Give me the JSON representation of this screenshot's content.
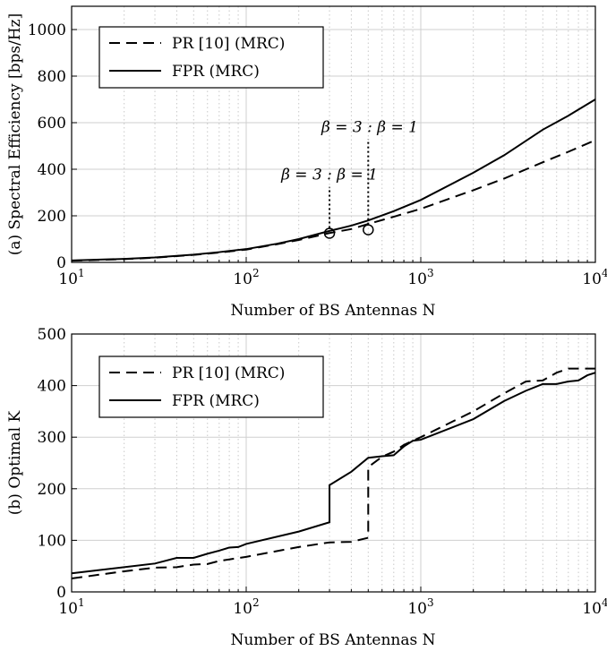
{
  "chart_data": [
    {
      "type": "line",
      "panel": "a",
      "title": "",
      "xlabel": "Number of BS Antennas N",
      "ylabel": "(a) Spectral Efficiency [bps/Hz]",
      "xscale": "log",
      "xlim": [
        10,
        10000
      ],
      "ylim": [
        0,
        1100
      ],
      "yticks": [
        0,
        200,
        400,
        600,
        800,
        1000
      ],
      "xticks": [
        10,
        100,
        1000,
        10000
      ],
      "xtick_labels": [
        {
          "base": "10",
          "exp": "1"
        },
        {
          "base": "10",
          "exp": "2"
        },
        {
          "base": "10",
          "exp": "3"
        },
        {
          "base": "10",
          "exp": "4"
        }
      ],
      "grid": true,
      "legend_position": "top-left",
      "series": [
        {
          "name": "PR [10] (MRC)",
          "style": "dashed",
          "color": "#000000",
          "x": [
            10,
            20,
            30,
            50,
            70,
            100,
            150,
            200,
            300,
            400,
            500,
            700,
            1000,
            2000,
            3000,
            5000,
            7000,
            10000
          ],
          "y": [
            7,
            14,
            20,
            32,
            42,
            55,
            78,
            96,
            126,
            143,
            165,
            196,
            230,
            310,
            360,
            430,
            475,
            525
          ]
        },
        {
          "name": "FPR (MRC)",
          "style": "solid",
          "color": "#000000",
          "x": [
            10,
            20,
            30,
            50,
            70,
            100,
            150,
            200,
            300,
            400,
            500,
            700,
            1000,
            2000,
            3000,
            5000,
            7000,
            10000
          ],
          "y": [
            8,
            15,
            21,
            33,
            44,
            57,
            80,
            100,
            135,
            158,
            180,
            220,
            268,
            385,
            460,
            570,
            630,
            700
          ]
        }
      ],
      "annotations": [
        {
          "text": "β = 3 : β = 1",
          "x": 510,
          "y": 560
        },
        {
          "text": "β = 3 : β = 1",
          "x": 300,
          "y": 355
        }
      ],
      "markers": [
        {
          "x": 300,
          "y": 125,
          "shape": "circle"
        },
        {
          "x": 500,
          "y": 140,
          "shape": "circle"
        }
      ]
    },
    {
      "type": "line",
      "panel": "b",
      "title": "",
      "xlabel": "Number of BS Antennas N",
      "ylabel": "(b) Optimal K",
      "xscale": "log",
      "xlim": [
        10,
        10000
      ],
      "ylim": [
        0,
        500
      ],
      "yticks": [
        0,
        100,
        200,
        300,
        400,
        500
      ],
      "xticks": [
        10,
        100,
        1000,
        10000
      ],
      "xtick_labels": [
        {
          "base": "10",
          "exp": "1"
        },
        {
          "base": "10",
          "exp": "2"
        },
        {
          "base": "10",
          "exp": "3"
        },
        {
          "base": "10",
          "exp": "4"
        }
      ],
      "grid": true,
      "legend_position": "top-left",
      "series": [
        {
          "name": "PR [10] (MRC)",
          "style": "dashed",
          "color": "#000000",
          "x": [
            10,
            20,
            30,
            40,
            50,
            60,
            70,
            80,
            100,
            200,
            300,
            400,
            500,
            500,
            600,
            700,
            800,
            900,
            1000,
            2000,
            3000,
            4000,
            5000,
            6000,
            7000,
            8000,
            10000
          ],
          "y": [
            26,
            40,
            47,
            48,
            53,
            54,
            60,
            63,
            68,
            87,
            96,
            97,
            105,
            242,
            262,
            272,
            285,
            293,
            300,
            350,
            385,
            408,
            410,
            425,
            433,
            433,
            433
          ]
        },
        {
          "name": "FPR (MRC)",
          "style": "solid",
          "color": "#000000",
          "x": [
            10,
            20,
            30,
            40,
            50,
            60,
            70,
            80,
            90,
            100,
            200,
            300,
            300,
            400,
            500,
            600,
            700,
            800,
            900,
            1000,
            2000,
            3000,
            4000,
            5000,
            6000,
            7000,
            8000,
            9000,
            10000
          ],
          "y": [
            36,
            48,
            55,
            66,
            66,
            74,
            80,
            86,
            87,
            93,
            117,
            135,
            207,
            233,
            260,
            263,
            265,
            282,
            293,
            295,
            335,
            370,
            390,
            403,
            403,
            408,
            410,
            420,
            425
          ]
        }
      ]
    }
  ]
}
